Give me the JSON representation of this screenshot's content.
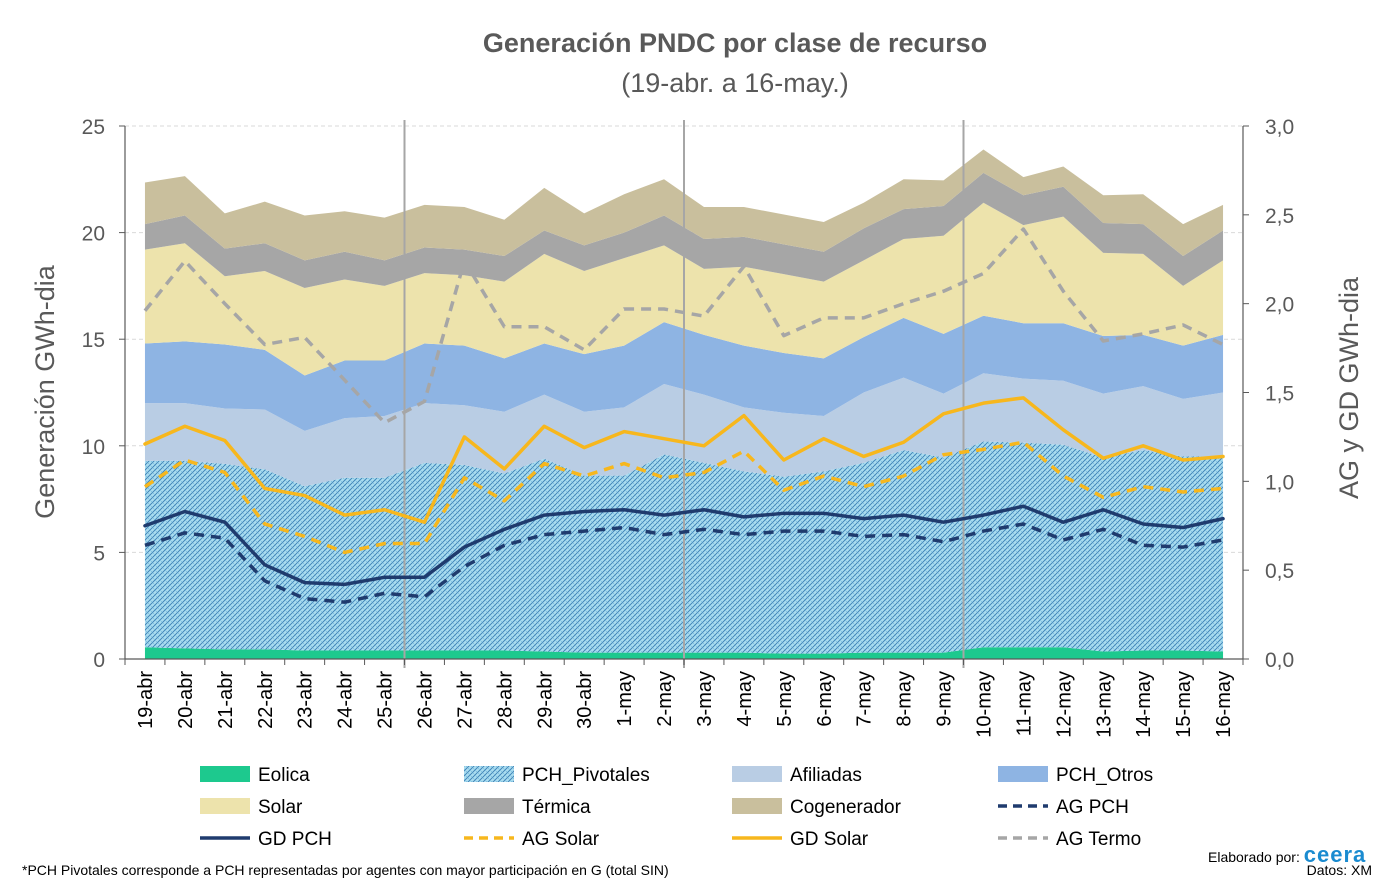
{
  "chart_data": {
    "type": "area",
    "title": "Generación PNDC por clase de recurso",
    "subtitle": "(19-abr. a 16-may.)",
    "ylabel": "Generación GWh-dia",
    "y2label": "AG y GD  GWh-dia",
    "ylim": [
      0,
      25
    ],
    "y2lim": [
      0,
      3.0
    ],
    "y_ticks": [
      "0",
      "5",
      "10",
      "15",
      "20",
      "25"
    ],
    "y2_ticks": [
      "0,0",
      "0,5",
      "1,0",
      "1,5",
      "2,0",
      "2,5",
      "3,0"
    ],
    "grid": "horizontal dashed",
    "legend_position": "bottom",
    "week_separators_after": [
      "25-abr",
      "2-may",
      "9-may"
    ],
    "categories": [
      "19-abr",
      "20-abr",
      "21-abr",
      "22-abr",
      "23-abr",
      "24-abr",
      "25-abr",
      "26-abr",
      "27-abr",
      "28-abr",
      "29-abr",
      "30-abr",
      "1-may",
      "2-may",
      "3-may",
      "4-may",
      "5-may",
      "6-may",
      "7-may",
      "8-may",
      "9-may",
      "10-may",
      "11-may",
      "12-may",
      "13-may",
      "14-may",
      "15-may",
      "16-may"
    ],
    "stacked_series": [
      {
        "name": "Eolica",
        "color": "#1dc98e",
        "pattern": "solid",
        "values": [
          0.55,
          0.5,
          0.45,
          0.45,
          0.4,
          0.4,
          0.4,
          0.4,
          0.4,
          0.4,
          0.35,
          0.3,
          0.3,
          0.3,
          0.3,
          0.3,
          0.25,
          0.25,
          0.3,
          0.3,
          0.3,
          0.55,
          0.55,
          0.55,
          0.35,
          0.4,
          0.4,
          0.35
        ]
      },
      {
        "name": "PCH_Pivotales",
        "color": "#8fcce8",
        "pattern": "hatch",
        "values": [
          8.75,
          8.8,
          8.7,
          8.45,
          7.7,
          8.1,
          8.1,
          8.8,
          8.7,
          8.3,
          9.05,
          8.3,
          8.3,
          9.3,
          8.9,
          8.5,
          8.3,
          8.55,
          8.9,
          9.5,
          9.15,
          9.65,
          9.6,
          9.5,
          9.1,
          9.4,
          9.1,
          9.15
        ]
      },
      {
        "name": "Afiliadas",
        "color": "#b9cde4",
        "pattern": "solid",
        "values": [
          2.7,
          2.7,
          2.6,
          2.8,
          2.6,
          2.8,
          2.9,
          2.8,
          2.8,
          2.9,
          3.0,
          3.0,
          3.2,
          3.3,
          3.2,
          3.0,
          3.0,
          2.6,
          3.3,
          3.4,
          3.0,
          3.2,
          3.0,
          3.0,
          3.0,
          3.0,
          2.7,
          3.0
        ]
      },
      {
        "name": "PCH_Otros",
        "color": "#8eb4e3",
        "pattern": "solid",
        "values": [
          2.8,
          2.9,
          3.0,
          2.8,
          2.6,
          2.7,
          2.6,
          2.8,
          2.8,
          2.5,
          2.4,
          2.7,
          2.9,
          2.9,
          2.8,
          2.9,
          2.8,
          2.7,
          2.6,
          2.8,
          2.8,
          2.7,
          2.6,
          2.7,
          2.7,
          2.4,
          2.5,
          2.7
        ]
      },
      {
        "name": "Solar",
        "color": "#ede3ac",
        "pattern": "solid",
        "values": [
          4.4,
          4.6,
          3.2,
          3.7,
          4.1,
          3.8,
          3.5,
          3.3,
          3.3,
          3.6,
          4.2,
          3.9,
          4.1,
          3.6,
          3.1,
          3.7,
          3.7,
          3.6,
          3.6,
          3.7,
          4.6,
          5.3,
          4.6,
          5.0,
          3.9,
          3.8,
          2.8,
          3.5
        ]
      },
      {
        "name": "Térmica",
        "color": "#a6a6a6",
        "pattern": "solid",
        "values": [
          1.2,
          1.3,
          1.3,
          1.3,
          1.3,
          1.3,
          1.2,
          1.2,
          1.2,
          1.2,
          1.1,
          1.2,
          1.2,
          1.4,
          1.4,
          1.4,
          1.4,
          1.4,
          1.5,
          1.4,
          1.4,
          1.4,
          1.4,
          1.4,
          1.4,
          1.4,
          1.4,
          1.4
        ]
      },
      {
        "name": "Cogenerador",
        "color": "#c9bf9d",
        "pattern": "solid",
        "values": [
          1.95,
          1.85,
          1.65,
          1.95,
          2.1,
          1.9,
          2.0,
          2.0,
          2.0,
          1.7,
          2.0,
          1.5,
          1.8,
          1.7,
          1.5,
          1.4,
          1.4,
          1.4,
          1.2,
          1.4,
          1.2,
          1.1,
          0.85,
          0.95,
          1.3,
          1.4,
          1.5,
          1.2
        ]
      }
    ],
    "line_series": [
      {
        "name": "AG PCH",
        "axis": "y2",
        "color": "#1f3b6e",
        "dash": true,
        "values": [
          0.64,
          0.71,
          0.68,
          0.44,
          0.34,
          0.32,
          0.37,
          0.35,
          0.52,
          0.64,
          0.7,
          0.72,
          0.74,
          0.7,
          0.73,
          0.7,
          0.72,
          0.72,
          0.69,
          0.7,
          0.66,
          0.72,
          0.76,
          0.67,
          0.73,
          0.64,
          0.63,
          0.67
        ]
      },
      {
        "name": "GD PCH",
        "axis": "y2",
        "color": "#1f3b6e",
        "dash": false,
        "values": [
          0.75,
          0.83,
          0.77,
          0.53,
          0.43,
          0.42,
          0.46,
          0.46,
          0.63,
          0.73,
          0.81,
          0.83,
          0.84,
          0.81,
          0.84,
          0.8,
          0.82,
          0.82,
          0.79,
          0.81,
          0.77,
          0.81,
          0.86,
          0.77,
          0.84,
          0.76,
          0.74,
          0.79
        ]
      },
      {
        "name": "AG Solar",
        "axis": "y2",
        "color": "#f7b71d",
        "dash": true,
        "values": [
          0.97,
          1.12,
          1.05,
          0.76,
          0.69,
          0.6,
          0.65,
          0.65,
          1.02,
          0.89,
          1.1,
          1.03,
          1.1,
          1.02,
          1.05,
          1.17,
          0.95,
          1.03,
          0.97,
          1.03,
          1.15,
          1.18,
          1.22,
          1.03,
          0.91,
          0.97,
          0.94,
          0.96
        ]
      },
      {
        "name": "GD Solar",
        "axis": "y2",
        "color": "#f7b71d",
        "dash": false,
        "values": [
          1.21,
          1.31,
          1.23,
          0.96,
          0.92,
          0.81,
          0.84,
          0.77,
          1.25,
          1.07,
          1.31,
          1.19,
          1.28,
          1.24,
          1.2,
          1.37,
          1.12,
          1.24,
          1.14,
          1.22,
          1.38,
          1.44,
          1.47,
          1.29,
          1.13,
          1.2,
          1.12,
          1.14
        ]
      },
      {
        "name": "AG Termo",
        "axis": "y2",
        "color": "#a6a6a6",
        "dash": true,
        "values": [
          1.96,
          2.24,
          2.0,
          1.77,
          1.81,
          1.57,
          1.33,
          1.45,
          2.24,
          1.87,
          1.87,
          1.74,
          1.97,
          1.97,
          1.93,
          2.21,
          1.82,
          1.92,
          1.92,
          2.0,
          2.07,
          2.17,
          2.42,
          2.07,
          1.79,
          1.83,
          1.88,
          1.77
        ]
      }
    ],
    "legend": [
      {
        "label": "Eolica",
        "kind": "area",
        "series": "Eolica"
      },
      {
        "label": "PCH_Pivotales",
        "kind": "area",
        "series": "PCH_Pivotales"
      },
      {
        "label": "Afiliadas",
        "kind": "area",
        "series": "Afiliadas"
      },
      {
        "label": "PCH_Otros",
        "kind": "area",
        "series": "PCH_Otros"
      },
      {
        "label": "Solar",
        "kind": "area",
        "series": "Solar"
      },
      {
        "label": "Térmica",
        "kind": "area",
        "series": "Térmica"
      },
      {
        "label": "Cogenerador",
        "kind": "area",
        "series": "Cogenerador"
      },
      {
        "label": "AG PCH",
        "kind": "line",
        "series": "AG PCH"
      },
      {
        "label": "GD PCH",
        "kind": "line",
        "series": "GD PCH"
      },
      {
        "label": "AG Solar",
        "kind": "line",
        "series": "AG Solar"
      },
      {
        "label": "GD Solar",
        "kind": "line",
        "series": "GD Solar"
      },
      {
        "label": "AG Termo",
        "kind": "line",
        "series": "AG Termo"
      }
    ]
  },
  "footer": {
    "note": "*PCH Pivotales corresponde a PCH representadas por agentes con mayor participación en G (total SIN)",
    "credit_prefix": "Elaborado por:",
    "credit_brand": "ceera",
    "source": "Datos: XM"
  }
}
